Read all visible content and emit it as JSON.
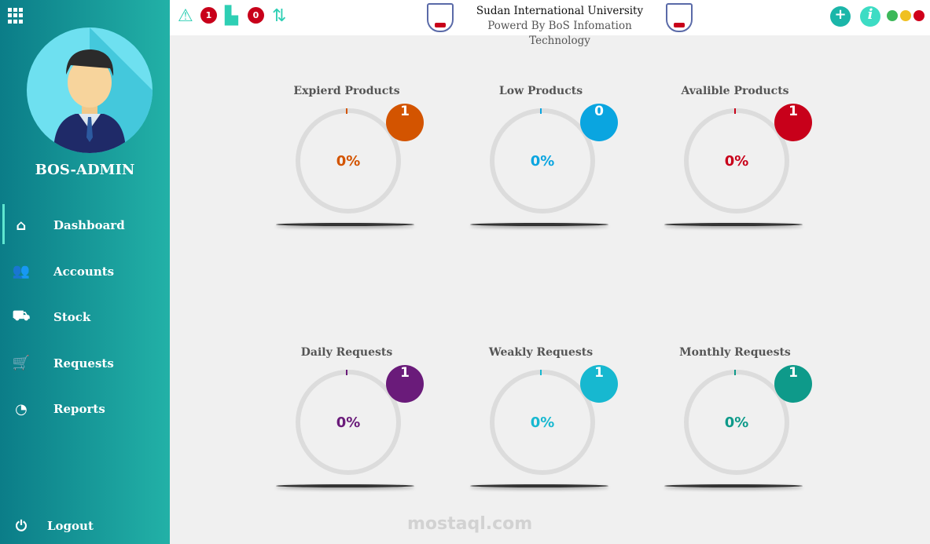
{
  "sidebar": {
    "username": "BOS-ADMIN",
    "items": [
      {
        "label": "Dashboard",
        "icon": "home-icon",
        "active": true
      },
      {
        "label": "Accounts",
        "icon": "users-icon"
      },
      {
        "label": "Stock",
        "icon": "hand-truck-icon"
      },
      {
        "label": "Requests",
        "icon": "cart-icon"
      },
      {
        "label": "Reports",
        "icon": "pie-chart-icon"
      }
    ],
    "logout": "Logout"
  },
  "header": {
    "title": "Sudan International University",
    "subtitle": "Powerd By BoS Infomation Technology",
    "alerts_count": "1",
    "transfer_count": "0"
  },
  "cards": [
    {
      "title": "Expierd Products",
      "percent": "0%",
      "count": "1",
      "color": "#d35400"
    },
    {
      "title": "Low Products",
      "percent": "0%",
      "count": "0",
      "color": "#0aa5e0"
    },
    {
      "title": "Avalible Products",
      "percent": "0%",
      "count": "1",
      "color": "#c8001a"
    },
    {
      "title": "Daily Requests",
      "percent": "0%",
      "count": "1",
      "color": "#6a1b7a"
    },
    {
      "title": "Weakly Requests",
      "percent": "0%",
      "count": "1",
      "color": "#17b8d0"
    },
    {
      "title": "Monthly Requests",
      "percent": "0%",
      "count": "1",
      "color": "#0e9a8a"
    }
  ],
  "watermark": "mostaql.com"
}
